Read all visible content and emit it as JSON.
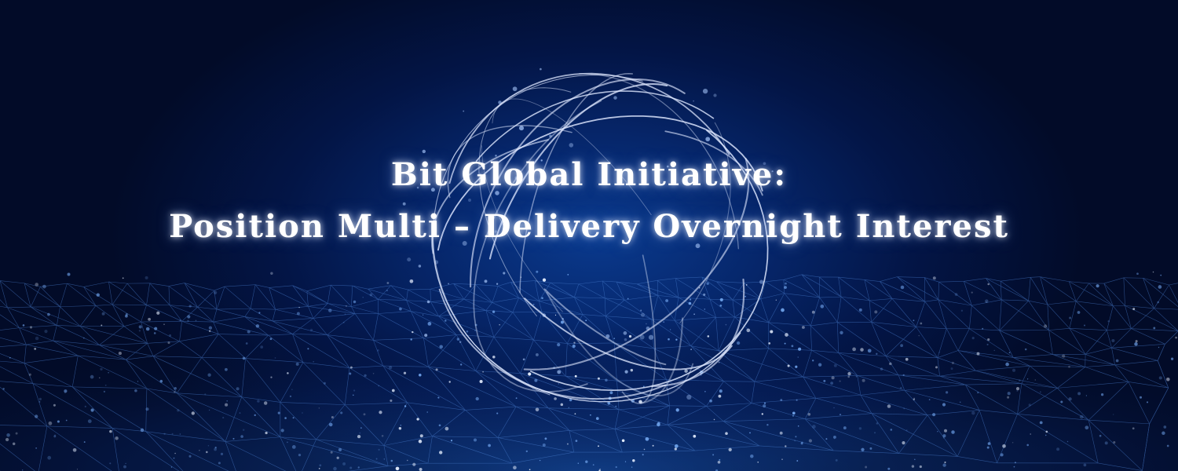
{
  "banner": {
    "title_line_1": "Bit Global Initiative:",
    "title_line_2": "Position Multi – Delivery Overnight Interest"
  },
  "colors": {
    "background_dark": "#020b28",
    "background_glow": "#0a3a8e",
    "network_lines": "#4a7fd0",
    "globe_lines": "#dfe8ff",
    "text": "#ffffff"
  },
  "icons": [
    "globe-wireframe",
    "network-mesh"
  ]
}
